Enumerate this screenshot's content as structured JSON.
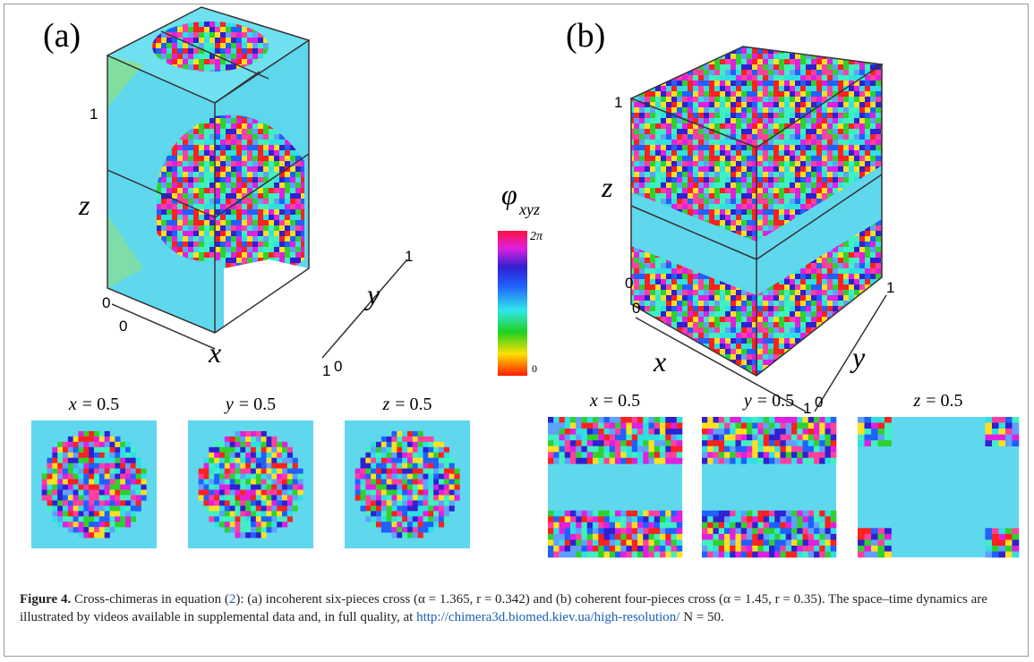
{
  "panels": [
    {
      "label": "(a)",
      "axis_labels": {
        "x": "x",
        "y": "y",
        "z": "z"
      },
      "z_ticks": [
        "1",
        "0"
      ],
      "x_ticks": [
        "0",
        "1"
      ],
      "y_ticks": [
        "0",
        "1"
      ],
      "slices": [
        {
          "var": "x",
          "eq": "= 0.5"
        },
        {
          "var": "y",
          "eq": "= 0.5"
        },
        {
          "var": "z",
          "eq": "= 0.5"
        }
      ]
    },
    {
      "label": "(b)",
      "axis_labels": {
        "x": "x",
        "y": "y",
        "z": "z"
      },
      "z_ticks": [
        "1",
        "0"
      ],
      "x_ticks": [
        "0",
        "1"
      ],
      "y_ticks": [
        "0",
        "1"
      ],
      "slices": [
        {
          "var": "x",
          "eq": "= 0.5"
        },
        {
          "var": "y",
          "eq": "= 0.5"
        },
        {
          "var": "z",
          "eq": "= 0.5"
        }
      ]
    }
  ],
  "colorbar": {
    "symbol": "φ",
    "subscript": "xyz",
    "max_label": "2π",
    "min_label": "0"
  },
  "caption": {
    "label": "Figure 4.",
    "text1": "Cross-chimeras in equation (",
    "ref": "2",
    "text2": "): (a) incoherent six-pieces cross (α = 1.365, r = 0.342) and (b) coherent four-pieces cross (α = 1.45, r = 0.35). The space–time dynamics are illustrated by videos available in supplemental data and, in full quality, at",
    "url": "http://chimera3d.biomed.kiev.ua/high-resolution/",
    "text3": "N = 50."
  }
}
